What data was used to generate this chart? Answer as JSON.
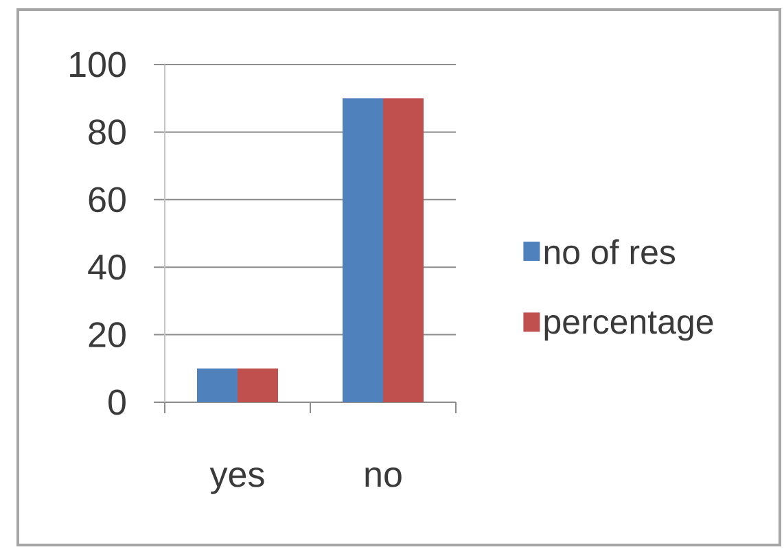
{
  "chart_data": {
    "type": "bar",
    "categories": [
      "yes",
      "no"
    ],
    "series": [
      {
        "name": "no of res",
        "color": "#4f81bd",
        "values": [
          10,
          90
        ]
      },
      {
        "name": "percentage",
        "color": "#c0504d",
        "values": [
          10,
          90
        ]
      }
    ],
    "ylim": [
      0,
      100
    ],
    "yticks": [
      0,
      20,
      40,
      60,
      80,
      100
    ],
    "grid": "y",
    "legend": "right"
  }
}
